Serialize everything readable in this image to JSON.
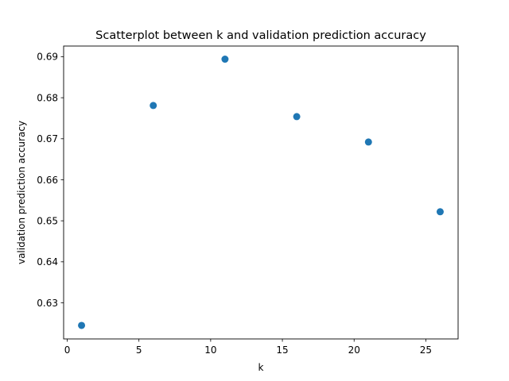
{
  "chart_data": {
    "type": "scatter",
    "title": "Scatterplot between k and validation prediction accuracy",
    "xlabel": "k",
    "ylabel": "validation prediction accuracy",
    "xlim": [
      -0.25,
      27.25
    ],
    "ylim": [
      0.6212,
      0.6926
    ],
    "xticks": [
      0,
      5,
      10,
      15,
      20,
      25
    ],
    "yticks": [
      0.63,
      0.64,
      0.65,
      0.66,
      0.67,
      0.68,
      0.69
    ],
    "grid": false,
    "legend": "none",
    "color": "#1f77b4",
    "points": [
      {
        "x": 1,
        "y": 0.6245
      },
      {
        "x": 6,
        "y": 0.6781
      },
      {
        "x": 11,
        "y": 0.6894
      },
      {
        "x": 16,
        "y": 0.6754
      },
      {
        "x": 21,
        "y": 0.6692
      },
      {
        "x": 26,
        "y": 0.6522
      }
    ]
  }
}
